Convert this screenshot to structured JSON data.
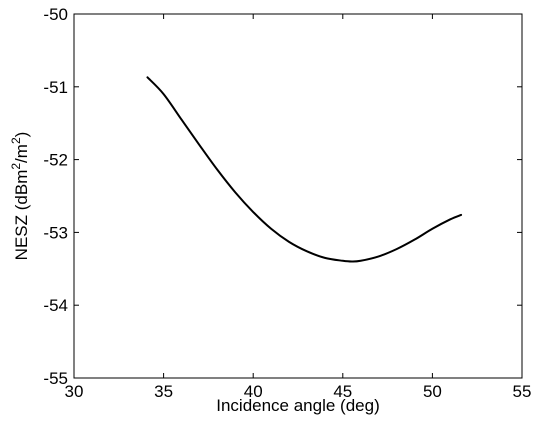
{
  "chart_data": {
    "type": "line",
    "title": "",
    "xlabel": "Incidence angle (deg)",
    "ylabel": {
      "prefix": "NESZ (dBm",
      "sup1": "2",
      "middle": "/m",
      "sup2": "2",
      "suffix": ")"
    },
    "xlim": [
      30,
      55
    ],
    "ylim": [
      -55,
      -50
    ],
    "xticks": [
      30,
      35,
      40,
      45,
      50,
      55
    ],
    "yticks": [
      -55,
      -54,
      -53,
      -52,
      -51,
      -50
    ],
    "xtick_labels": [
      "30",
      "35",
      "40",
      "45",
      "50",
      "55"
    ],
    "ytick_labels": [
      "-55",
      "-54",
      "-53",
      "-52",
      "-51",
      "-50"
    ],
    "grid": false,
    "series": [
      {
        "color": "#000000",
        "x": [
          34.1,
          35,
          36,
          37,
          38,
          39,
          40,
          41,
          42,
          43,
          44,
          45,
          45.5,
          46,
          47,
          48,
          49,
          50,
          51,
          51.6
        ],
        "y": [
          -50.87,
          -51.1,
          -51.45,
          -51.8,
          -52.14,
          -52.45,
          -52.72,
          -52.95,
          -53.13,
          -53.26,
          -53.35,
          -53.39,
          -53.4,
          -53.39,
          -53.33,
          -53.23,
          -53.1,
          -52.95,
          -52.82,
          -52.76
        ]
      }
    ]
  }
}
